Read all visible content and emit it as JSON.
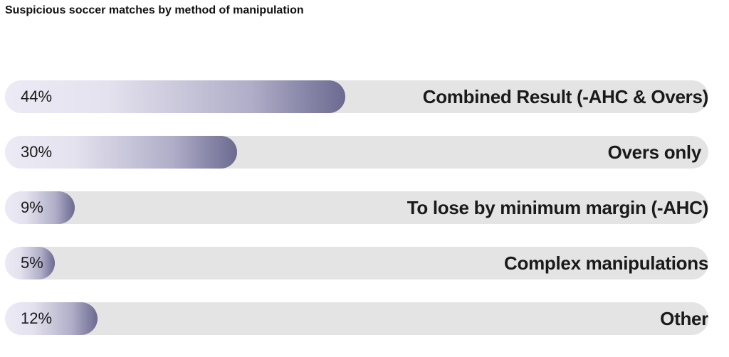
{
  "chart_data": {
    "type": "bar",
    "title": "Suspicious soccer matches by method of manipulation",
    "categories": [
      "Combined Result (-AHC & Overs)",
      "Overs only",
      "To lose by minimum margin  (-AHC)",
      "Complex manipulations",
      "Other"
    ],
    "values": [
      44,
      30,
      9,
      5,
      12
    ],
    "value_labels": [
      "44%",
      "30%",
      "9%",
      "5%",
      "12%"
    ],
    "xlim": [
      0,
      100
    ],
    "grid": false,
    "legend": "none"
  },
  "colors": {
    "track": "#e5e4e5",
    "bar_start": "#eceaf5",
    "bar_end": "#6c6a90",
    "text": "#1a1a1a"
  }
}
